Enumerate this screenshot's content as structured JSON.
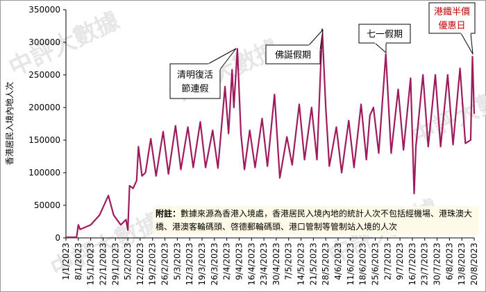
{
  "chart_data": {
    "type": "line",
    "y_label": "香港居民入境內地人次",
    "color": "#9e1a5c",
    "xlim": [
      "1/1/2023",
      "20/8/2023"
    ],
    "xticks": [
      "1/1/2023",
      "8/1/2023",
      "15/1/2023",
      "22/1/2023",
      "29/1/2023",
      "5/2/2023",
      "12/2/2023",
      "19/2/2023",
      "26/2/2023",
      "5/3/2023",
      "12/3/2023",
      "19/3/2023",
      "26/3/2023",
      "2/4/2023",
      "9/4/2023",
      "16/4/2023",
      "23/4/2023",
      "30/4/2023",
      "7/5/2023",
      "14/5/2023",
      "21/5/2023",
      "28/5/2023",
      "4/6/2023",
      "11/6/2023",
      "18/6/2023",
      "25/6/2023",
      "2/7/2023",
      "9/7/2023",
      "16/7/2023",
      "23/7/2023",
      "30/7/2023",
      "6/8/2023",
      "13/8/2023",
      "20/8/2023"
    ],
    "ylim": [
      0,
      350000
    ],
    "yticks": [
      0,
      50000,
      100000,
      150000,
      200000,
      250000,
      300000,
      350000
    ],
    "x": [
      "1/1/2023",
      "7/1/2023",
      "8/1/2023",
      "9/1/2023",
      "15/1/2023",
      "20/1/2023",
      "25/1/2023",
      "28/1/2023",
      "1/2/2023",
      "4/2/2023",
      "5/2/2023",
      "6/2/2023",
      "8/2/2023",
      "10/2/2023",
      "11/2/2023",
      "13/2/2023",
      "15/2/2023",
      "18/2/2023",
      "21/2/2023",
      "25/2/2023",
      "28/2/2023",
      "4/3/2023",
      "7/3/2023",
      "11/3/2023",
      "14/3/2023",
      "18/3/2023",
      "21/3/2023",
      "25/3/2023",
      "28/3/2023",
      "1/4/2023",
      "3/4/2023",
      "5/4/2023",
      "6/4/2023",
      "8/4/2023",
      "10/4/2023",
      "12/4/2023",
      "15/4/2023",
      "18/4/2023",
      "22/4/2023",
      "25/4/2023",
      "29/4/2023",
      "2/5/2023",
      "6/5/2023",
      "9/5/2023",
      "13/5/2023",
      "16/5/2023",
      "20/5/2023",
      "23/5/2023",
      "26/5/2023",
      "28/5/2023",
      "30/5/2023",
      "3/6/2023",
      "6/6/2023",
      "10/6/2023",
      "13/6/2023",
      "17/6/2023",
      "20/6/2023",
      "22/6/2023",
      "24/6/2023",
      "27/6/2023",
      "1/7/2023",
      "4/7/2023",
      "8/7/2023",
      "11/7/2023",
      "15/7/2023",
      "17/7/2023",
      "18/7/2023",
      "22/7/2023",
      "25/7/2023",
      "29/7/2023",
      "1/8/2023",
      "5/8/2023",
      "8/8/2023",
      "12/8/2023",
      "15/8/2023",
      "18/8/2023",
      "19/8/2023",
      "20/8/2023"
    ],
    "values": [
      1000,
      1000,
      20000,
      13000,
      20000,
      35000,
      65000,
      35000,
      20000,
      28000,
      12000,
      80000,
      76000,
      88000,
      140000,
      95000,
      100000,
      152000,
      95000,
      163000,
      98000,
      172000,
      105000,
      170000,
      108000,
      178000,
      108000,
      165000,
      107000,
      232000,
      160000,
      258000,
      200000,
      290000,
      160000,
      105000,
      165000,
      108000,
      183000,
      110000,
      220000,
      92000,
      155000,
      112000,
      205000,
      120000,
      200000,
      120000,
      320000,
      200000,
      110000,
      170000,
      100000,
      180000,
      108000,
      205000,
      120000,
      188000,
      200000,
      130000,
      282000,
      130000,
      228000,
      135000,
      245000,
      68000,
      140000,
      250000,
      140000,
      250000,
      140000,
      250000,
      143000,
      260000,
      145000,
      150000,
      278000,
      190000
    ],
    "annotations": [
      {
        "lines": [
          "清明復活",
          "節連假"
        ]
      },
      {
        "lines": [
          "佛誕假期"
        ]
      },
      {
        "lines": [
          "七一假期"
        ]
      },
      {
        "lines": [
          "港鐵半價",
          "優惠日"
        ]
      }
    ],
    "note_label": "附註：",
    "note_text": "數據來源為香港入境處，香港居民入境內地的統計人次不包括經機場、港珠澳大橋、港澳客輪碼頭、啓德郵輪碼頭、港口管制等管制站入境的人次",
    "watermark": "中評大數據"
  }
}
